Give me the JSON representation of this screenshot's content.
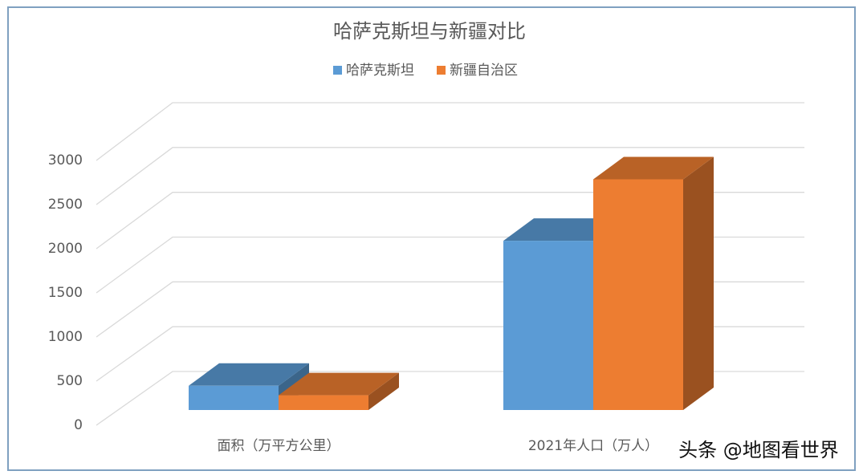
{
  "chart_data": {
    "type": "bar3d",
    "title": "哈萨克斯坦与新疆对比",
    "categories": [
      "面积（万平方公里）",
      "2021年人口（万人）"
    ],
    "series": [
      {
        "name": "哈萨克斯坦",
        "color": "#5b9bd5",
        "values": [
          272,
          1900
        ]
      },
      {
        "name": "新疆自治区",
        "color": "#ed7d31",
        "values": [
          166,
          2590
        ]
      }
    ],
    "ylim": [
      0,
      3000
    ],
    "yticks": [
      0,
      500,
      1000,
      1500,
      2000,
      2500,
      3000
    ],
    "grid": true,
    "legend": "top"
  },
  "watermark": "头条 @地图看世界"
}
